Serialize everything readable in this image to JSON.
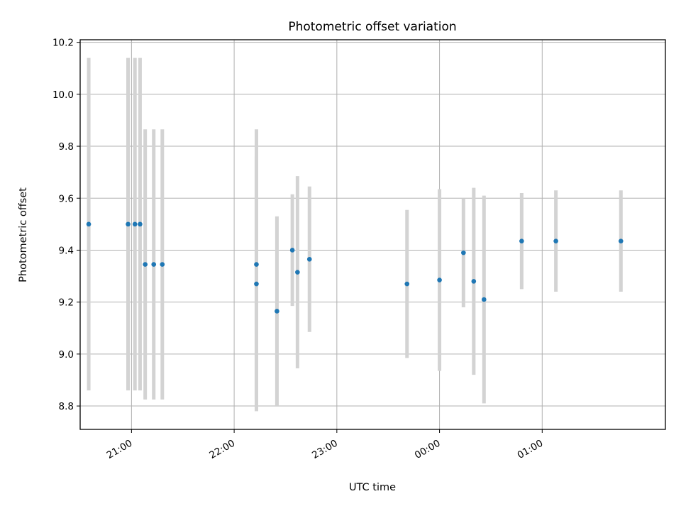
{
  "chart_data": {
    "type": "scatter",
    "title": "Photometric offset variation",
    "xlabel": "UTC time",
    "ylabel": "Photometric offset",
    "x_ticks": [
      "21:00",
      "22:00",
      "23:00",
      "00:00",
      "01:00"
    ],
    "y_ticks": [
      "8.8",
      "9.0",
      "9.2",
      "9.4",
      "9.6",
      "9.8",
      "10.0",
      "10.2"
    ],
    "xlim": [
      "20:30",
      "02:12"
    ],
    "ylim": [
      8.71,
      10.21
    ],
    "grid": true,
    "points": [
      {
        "x": "20:35",
        "y": 9.5,
        "err": 0.64
      },
      {
        "x": "20:58",
        "y": 9.5,
        "err": 0.64
      },
      {
        "x": "21:02",
        "y": 9.5,
        "err": 0.64
      },
      {
        "x": "21:05",
        "y": 9.5,
        "err": 0.64
      },
      {
        "x": "21:08",
        "y": 9.345,
        "err": 0.52
      },
      {
        "x": "21:13",
        "y": 9.345,
        "err": 0.52
      },
      {
        "x": "21:18",
        "y": 9.345,
        "err": 0.52
      },
      {
        "x": "22:13",
        "y": 9.345,
        "err": 0.52
      },
      {
        "x": "22:13",
        "y": 9.27,
        "err": 0.49
      },
      {
        "x": "22:25",
        "y": 9.165,
        "err": 0.365
      },
      {
        "x": "22:34",
        "y": 9.4,
        "err": 0.215
      },
      {
        "x": "22:37",
        "y": 9.315,
        "err": 0.37
      },
      {
        "x": "22:44",
        "y": 9.365,
        "err": 0.28
      },
      {
        "x": "23:41",
        "y": 9.27,
        "err": 0.285
      },
      {
        "x": "00:00",
        "y": 9.285,
        "err": 0.35
      },
      {
        "x": "00:14",
        "y": 9.39,
        "err": 0.21
      },
      {
        "x": "00:20",
        "y": 9.28,
        "err": 0.36
      },
      {
        "x": "00:26",
        "y": 9.21,
        "err": 0.4
      },
      {
        "x": "00:48",
        "y": 9.435,
        "err": 0.185
      },
      {
        "x": "01:08",
        "y": 9.435,
        "err": 0.195
      },
      {
        "x": "01:46",
        "y": 9.435,
        "err": 0.195
      }
    ],
    "point_color": "#1f77b4",
    "errorbar_color": "#d3d3d3"
  }
}
